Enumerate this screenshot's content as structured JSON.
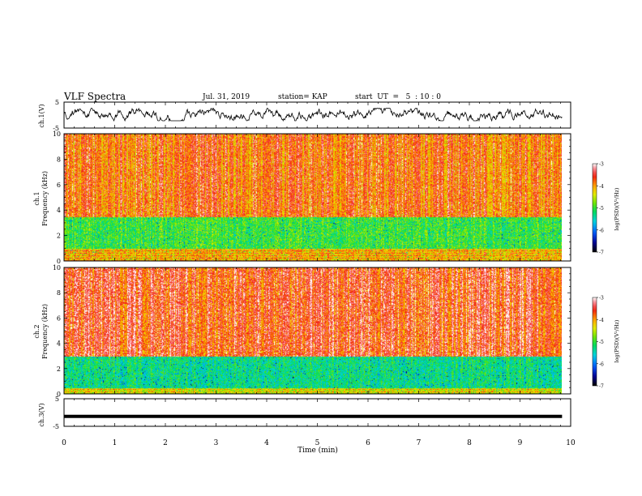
{
  "header": {
    "title": "VLF Spectra",
    "date": "Jul. 31, 2019",
    "station": "station= KAP",
    "start_ut": "start  UT  =   5  : 10 : 0"
  },
  "chart_data": [
    {
      "type": "line",
      "panel": "ch1-waveform",
      "ylabel": "ch.1(V)",
      "ylim": [
        -5,
        5
      ],
      "ytick_labels": [
        "5",
        "-5"
      ],
      "x_range_min": [
        0,
        9.83
      ],
      "y_range_approx": [
        -2.2,
        2.6
      ],
      "color": "#000000"
    },
    {
      "type": "heatmap",
      "panel": "ch1-spectrogram",
      "ylabel_line1": "ch.1",
      "ylabel_line2": "Frequency  (kHz)",
      "ylim": [
        0,
        10
      ],
      "ytick_labels": [
        "0",
        "2",
        "4",
        "6",
        "8",
        "10"
      ],
      "colorbar": {
        "label": "log(PSD)(V²/Hz)",
        "range": [
          -7,
          -3
        ],
        "tick_labels": [
          "-3",
          "-4",
          "-5",
          "-6",
          "-7"
        ]
      },
      "bands_khz": [
        {
          "name": "high",
          "range": [
            3.5,
            10
          ],
          "dominant_log_psd": -3.8
        },
        {
          "name": "mid",
          "range": [
            1.0,
            3.5
          ],
          "dominant_log_psd": -5.0
        },
        {
          "name": "low",
          "range": [
            0,
            1.0
          ],
          "dominant_log_psd": -4.2
        }
      ]
    },
    {
      "type": "heatmap",
      "panel": "ch2-spectrogram",
      "ylabel_line1": "ch.2",
      "ylabel_line2": "Frequency  (kHz)",
      "ylim": [
        0,
        10
      ],
      "ytick_labels": [
        "0",
        "2",
        "4",
        "6",
        "8",
        "10"
      ],
      "colorbar": {
        "label": "log(PSD)(V²/Hz)",
        "range": [
          -7,
          -3
        ],
        "tick_labels": [
          "-3",
          "-4",
          "-5",
          "-6",
          "-7"
        ]
      },
      "bands_khz": [
        {
          "name": "high",
          "range": [
            3.0,
            10
          ],
          "dominant_log_psd": -3.6
        },
        {
          "name": "mid",
          "range": [
            0.5,
            3.0
          ],
          "dominant_log_psd": -5.3
        },
        {
          "name": "low",
          "range": [
            0,
            0.5
          ],
          "dominant_log_psd": -4.5
        }
      ]
    },
    {
      "type": "line",
      "panel": "ch3-waveform",
      "ylabel": "ch.3(V)",
      "ylim": [
        -5,
        5
      ],
      "ytick_labels": [
        "5",
        "-5"
      ],
      "x_range_min": [
        0,
        9.83
      ],
      "y_value_approx": -1.4,
      "color": "#000000"
    }
  ],
  "xaxis": {
    "label": "Time  (min)",
    "range": [
      0,
      10
    ],
    "tick_labels": [
      "0",
      "1",
      "2",
      "3",
      "4",
      "5",
      "6",
      "7",
      "8",
      "9",
      "10"
    ]
  }
}
